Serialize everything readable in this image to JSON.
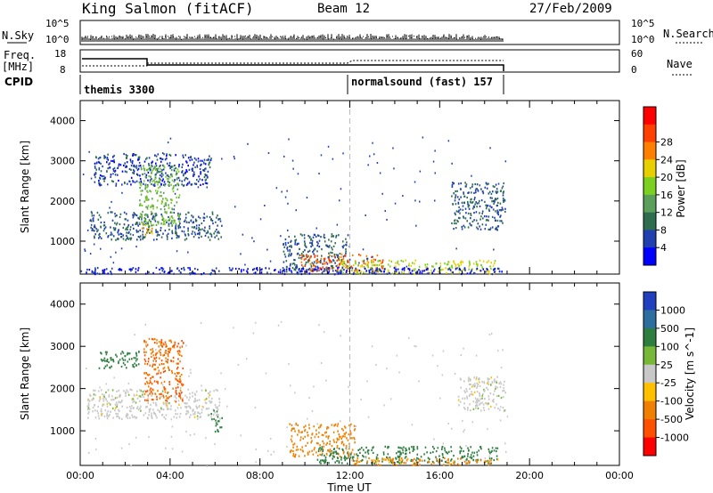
{
  "header": {
    "site": "King Salmon (fitACF)",
    "beam": "Beam 12",
    "date": "27/Feb/2009"
  },
  "top_panels": {
    "nsky_label": "N.Sky",
    "nsky_ticks": [
      "10^5",
      "10^0"
    ],
    "nsearch_label": "N.Search",
    "freq_label_1": "Freq.",
    "freq_label_2": "[MHz]",
    "freq_ticks": [
      "18",
      "8"
    ],
    "nave_ticks": [
      "60",
      "0"
    ],
    "nave_label": "Nave",
    "cpid_label": "CPID",
    "cpid_1": "themis 3300",
    "cpid_2": "normalsound (fast) 157"
  },
  "colors": {
    "power": [
      "#0000ff",
      "#2040b0",
      "#2e6e4e",
      "#5aa05a",
      "#7cd020",
      "#e8d000",
      "#ff8000",
      "#ff4000",
      "#ff0000"
    ],
    "velocity": [
      "#2040c0",
      "#2c6ea0",
      "#2e7e40",
      "#78b838",
      "#c8c8c8",
      "#ffc000",
      "#f08000",
      "#ff5000",
      "#ff0000"
    ]
  },
  "chart_data": [
    {
      "type": "heatmap",
      "title": "Power",
      "ylabel": "Slant Range [km]",
      "xlabel": "Time UT",
      "xlim": [
        0,
        24
      ],
      "ylim": [
        180,
        4500
      ],
      "x_ticks": [
        "00:00",
        "04:00",
        "08:00",
        "12:00",
        "16:00",
        "20:00",
        "00:00"
      ],
      "y_ticks": [
        "1000",
        "2000",
        "3000",
        "4000"
      ],
      "colorbar_label": "Power [dB]",
      "colorbar_ticks": [
        "4",
        "8",
        "12",
        "16",
        "20",
        "24",
        "28"
      ],
      "regions": [
        {
          "t0": 0.4,
          "t1": 6.3,
          "r0": 1050,
          "r1": 1750,
          "val": 8
        },
        {
          "t0": 0.6,
          "t1": 5.8,
          "r0": 2400,
          "r1": 3200,
          "val": 6
        },
        {
          "t0": 2.6,
          "t1": 4.4,
          "r0": 1400,
          "r1": 2900,
          "val": 16
        },
        {
          "t0": 2.7,
          "t1": 3.2,
          "r0": 1150,
          "r1": 1500,
          "val": 24
        },
        {
          "t0": 9.0,
          "t1": 12.0,
          "r0": 250,
          "r1": 1200,
          "val": 8
        },
        {
          "t0": 9.8,
          "t1": 13.5,
          "r0": 260,
          "r1": 700,
          "val": 28
        },
        {
          "t0": 11.5,
          "t1": 18.5,
          "r0": 200,
          "r1": 550,
          "val": 20
        },
        {
          "t0": 16.5,
          "t1": 18.9,
          "r0": 1300,
          "r1": 2500,
          "val": 8
        },
        {
          "t0": 0.2,
          "t1": 18.8,
          "r0": 200,
          "r1": 360,
          "val": 4
        }
      ]
    },
    {
      "type": "heatmap",
      "title": "Velocity",
      "ylabel": "Slant Range [km]",
      "xlabel": "Time UT",
      "xlim": [
        0,
        24
      ],
      "ylim": [
        180,
        4500
      ],
      "x_ticks": [
        "00:00",
        "04:00",
        "08:00",
        "12:00",
        "16:00",
        "20:00",
        "00:00"
      ],
      "y_ticks": [
        "1000",
        "2000",
        "3000",
        "4000"
      ],
      "colorbar_label": "Velocity [m s^-1]",
      "colorbar_ticks": [
        "1000",
        "500",
        "100",
        "25",
        "-25",
        "-100",
        "-500",
        "-1000"
      ],
      "regions": [
        {
          "t0": 0.3,
          "t1": 6.2,
          "r0": 1300,
          "r1": 2000,
          "val": 0
        },
        {
          "t0": 2.8,
          "t1": 4.6,
          "r0": 1700,
          "r1": 3200,
          "val": -300
        },
        {
          "t0": 0.8,
          "t1": 2.6,
          "r0": 2500,
          "r1": 2900,
          "val": 200
        },
        {
          "t0": 5.8,
          "t1": 6.3,
          "r0": 1000,
          "r1": 1500,
          "val": 150
        },
        {
          "t0": 9.3,
          "t1": 12.2,
          "r0": 400,
          "r1": 1200,
          "val": -200
        },
        {
          "t0": 10.5,
          "t1": 18.6,
          "r0": 250,
          "r1": 650,
          "val": 150
        },
        {
          "t0": 12.0,
          "t1": 18.6,
          "r0": 200,
          "r1": 380,
          "val": -80
        },
        {
          "t0": 16.8,
          "t1": 18.9,
          "r0": 1500,
          "r1": 2300,
          "val": 0
        }
      ]
    }
  ]
}
